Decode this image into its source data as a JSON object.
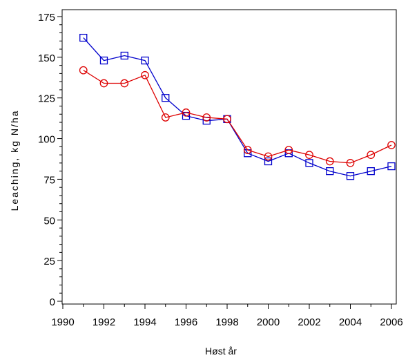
{
  "chart_data": {
    "type": "line",
    "title": "",
    "xlabel": "Høst år",
    "ylabel": "Leaching,  kg  N/ha",
    "xlim": [
      1990,
      2006
    ],
    "ylim": [
      0,
      175
    ],
    "x_ticks": [
      1990,
      1992,
      1994,
      1996,
      1998,
      2000,
      2002,
      2004,
      2006
    ],
    "y_ticks": [
      0,
      25,
      50,
      75,
      100,
      125,
      150,
      175
    ],
    "grid": false,
    "x": [
      1991,
      1992,
      1993,
      1994,
      1995,
      1996,
      1997,
      1998,
      1999,
      2000,
      2001,
      2002,
      2003,
      2004,
      2005,
      2006
    ],
    "series": [
      {
        "marker": "square",
        "color": "#0000cc",
        "values": [
          162,
          148,
          151,
          148,
          125,
          114,
          111,
          112,
          91,
          86,
          91,
          85,
          80,
          77,
          80,
          83
        ]
      },
      {
        "marker": "circle",
        "color": "#dd0000",
        "values": [
          142,
          134,
          134,
          139,
          113,
          116,
          113,
          112,
          93,
          89,
          93,
          90,
          86,
          85,
          90,
          96
        ]
      }
    ]
  }
}
